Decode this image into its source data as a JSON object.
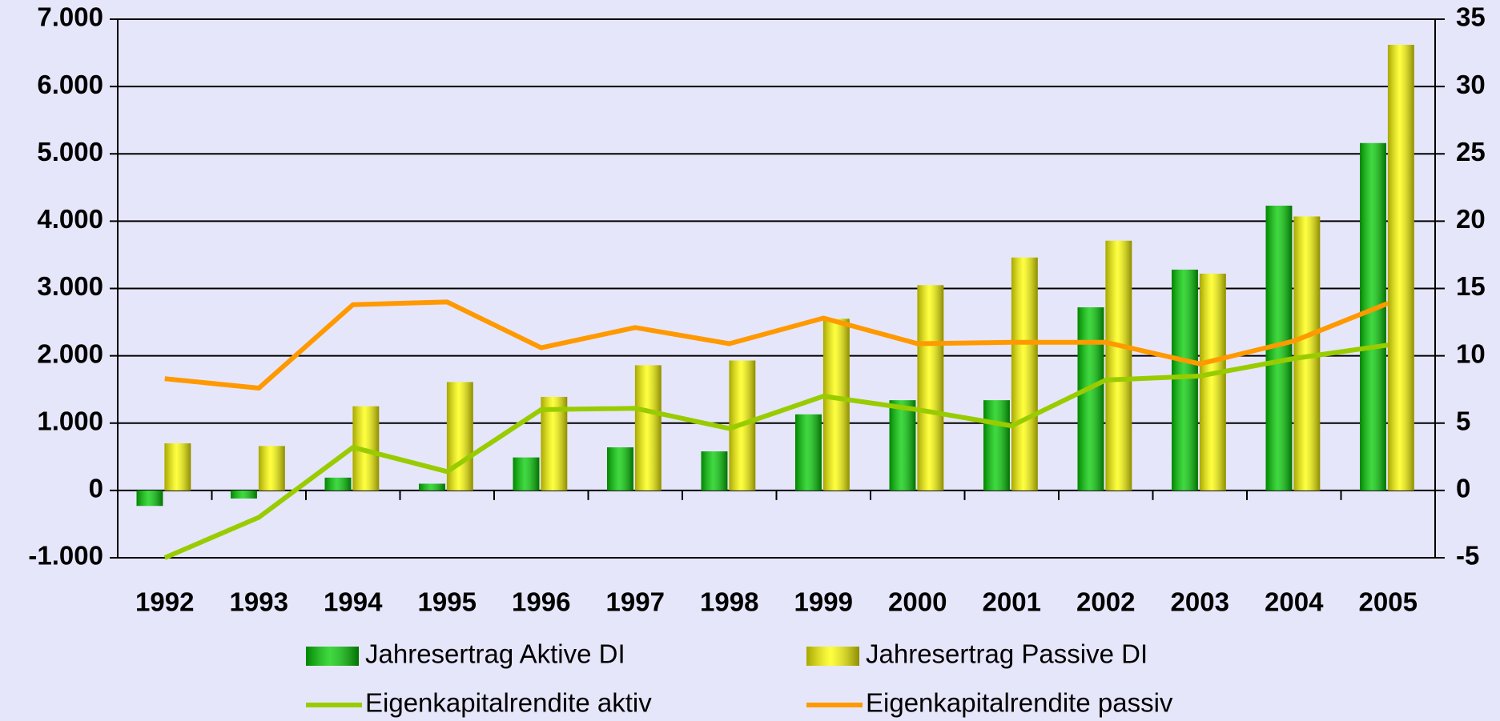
{
  "chart_data": {
    "type": "bar",
    "categories": [
      "1992",
      "1993",
      "1994",
      "1995",
      "1996",
      "1997",
      "1998",
      "1999",
      "2000",
      "2001",
      "2002",
      "2003",
      "2004",
      "2005"
    ],
    "series": [
      {
        "name": "Jahresertrag Aktive DI",
        "color": "#00cc00",
        "values": [
          -230,
          -120,
          190,
          100,
          490,
          640,
          580,
          1130,
          1340,
          1340,
          2720,
          3280,
          4230,
          5160
        ]
      },
      {
        "name": "Jahresertrag Passive DI",
        "color": "#ffff00",
        "values": [
          700,
          660,
          1250,
          1610,
          1390,
          1860,
          1930,
          2550,
          3050,
          3460,
          3710,
          3220,
          4070,
          6620
        ]
      },
      {
        "name": "Eigenkapitalrendite aktiv",
        "type": "line",
        "axis": "y2",
        "color": "#99cc00",
        "values": [
          -5,
          -2,
          3.2,
          1.4,
          6,
          6.1,
          4.6,
          7,
          6,
          4.8,
          8.2,
          8.5,
          9.8,
          10.8
        ]
      },
      {
        "name": "Eigenkapitalrendite passiv",
        "type": "line",
        "axis": "y2",
        "color": "#ff9900",
        "values": [
          8.3,
          7.6,
          13.8,
          14,
          10.6,
          12.1,
          10.9,
          12.8,
          10.9,
          11,
          11,
          9.4,
          11.1,
          13.9
        ]
      }
    ],
    "ylim": [
      -1000,
      7000
    ],
    "yticks": [
      {
        "value": -1000,
        "label": "-1.000"
      },
      0,
      {
        "value": 1000,
        "label": "1.000"
      },
      {
        "value": 2000,
        "label": "2.000"
      },
      {
        "value": 3000,
        "label": "3.000"
      },
      {
        "value": 4000,
        "label": "4.000"
      },
      {
        "value": 5000,
        "label": "5.000"
      },
      {
        "value": 6000,
        "label": "6.000"
      },
      {
        "value": 7000,
        "label": "7.000"
      }
    ],
    "y2lim": [
      -5,
      35
    ],
    "y2ticks": [
      -5,
      0,
      5,
      10,
      15,
      20,
      25,
      30,
      35
    ],
    "grid": true
  }
}
